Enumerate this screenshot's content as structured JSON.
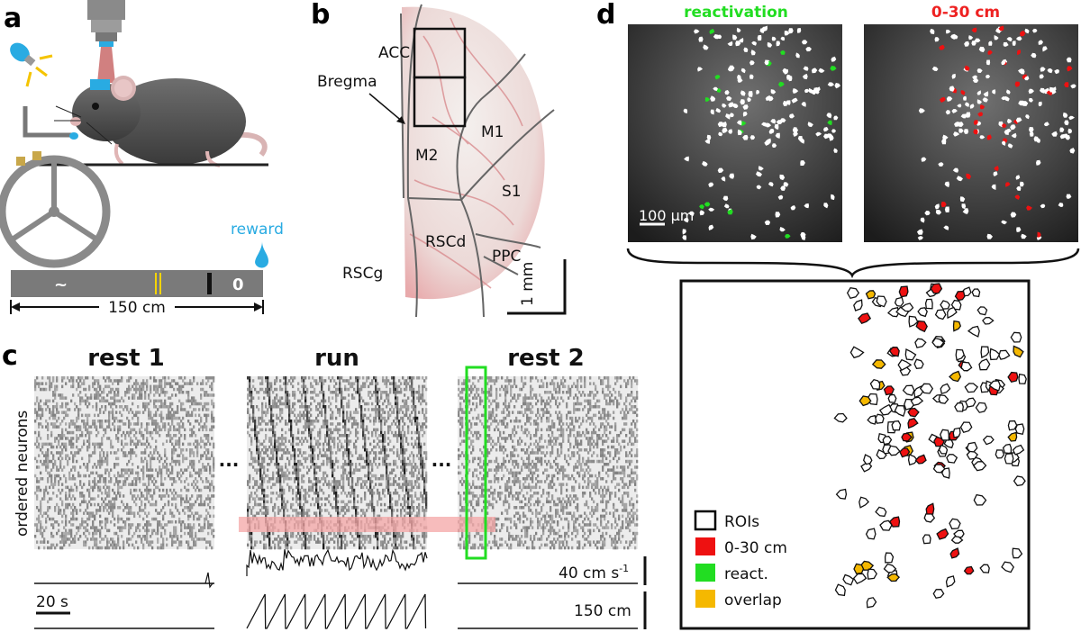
{
  "panels": {
    "a": {
      "letter": "a",
      "reward_label": "reward",
      "track_length_label": "150 cm",
      "reward_color": "#29abe2"
    },
    "b": {
      "letter": "b",
      "regions": [
        "ACC",
        "Bregma",
        "M1",
        "M2",
        "S1",
        "RSCd",
        "PPC",
        "RSCg"
      ],
      "scale_label": "1 mm"
    },
    "c": {
      "letter": "c",
      "block_titles": [
        "rest 1",
        "run",
        "rest 2"
      ],
      "ellipsis": "...",
      "y_axis_label": "ordered neurons",
      "time_scale_label": "20 s",
      "speed_scale_label": "40 cm s",
      "speed_scale_exponent": "-1",
      "position_scale_label": "150 cm",
      "highlight_row_color": "#f4a6a6",
      "highlight_box_color": "#22dd22"
    },
    "d": {
      "letter": "d",
      "image_titles": [
        "reactivation",
        "0-30 cm"
      ],
      "image_title_colors": [
        "#22dd22",
        "#ee2222"
      ],
      "scale_label": "100 µm",
      "legend": [
        {
          "label": "ROIs",
          "color": "#000000"
        },
        {
          "label": "0-30 cm",
          "color": "#ee1111"
        },
        {
          "label": "react.",
          "color": "#22dd22"
        },
        {
          "label": "overlap",
          "color": "#f5b800"
        }
      ]
    }
  }
}
